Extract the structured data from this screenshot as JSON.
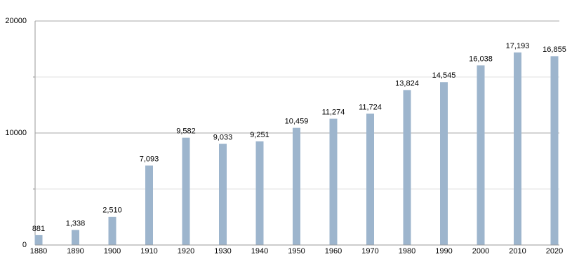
{
  "chart_data": {
    "type": "bar",
    "categories": [
      "1880",
      "1890",
      "1900",
      "1910",
      "1920",
      "1930",
      "1940",
      "1950",
      "1960",
      "1970",
      "1980",
      "1990",
      "2000",
      "2010",
      "2020"
    ],
    "values": [
      881,
      1338,
      2510,
      7093,
      9582,
      9033,
      9251,
      10459,
      11274,
      11724,
      13824,
      14545,
      16038,
      17193,
      16855
    ],
    "value_labels": [
      "881",
      "1,338",
      "2,510",
      "7,093",
      "9,582",
      "9,033",
      "9,251",
      "10,459",
      "11,274",
      "11,724",
      "13,824",
      "14,545",
      "16,038",
      "17,193",
      "16,855"
    ],
    "color": "#9db5cd",
    "ylim": [
      0,
      20000
    ],
    "yticks": [
      0,
      10000,
      20000
    ],
    "minor_yticks": [
      5000,
      15000
    ],
    "grid": true
  }
}
